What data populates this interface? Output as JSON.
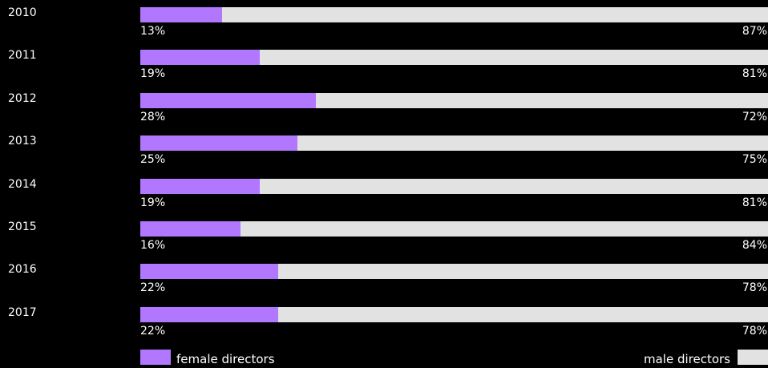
{
  "colors": {
    "background": "#000000",
    "female": "#b177ff",
    "male": "#e2e2e2",
    "text": "#ffffff"
  },
  "chart_data": {
    "type": "bar",
    "orientation": "horizontal",
    "stacked": true,
    "normalized_to": 100,
    "categories": [
      "2010",
      "2011",
      "2012",
      "2013",
      "2014",
      "2015",
      "2016",
      "2017"
    ],
    "series": [
      {
        "name": "female directors",
        "values": [
          13,
          19,
          28,
          25,
          19,
          16,
          22,
          22
        ],
        "labels": [
          "13%",
          "19%",
          "28%",
          "25%",
          "19%",
          "16%",
          "22%",
          "22%"
        ]
      },
      {
        "name": "male directors",
        "values": [
          87,
          81,
          72,
          75,
          81,
          84,
          78,
          78
        ],
        "labels": [
          "87%",
          "81%",
          "72%",
          "75%",
          "81%",
          "84%",
          "78%",
          "78%"
        ]
      }
    ],
    "xlim": [
      0,
      100
    ],
    "grid": false,
    "legend": {
      "position": "bottom"
    }
  }
}
